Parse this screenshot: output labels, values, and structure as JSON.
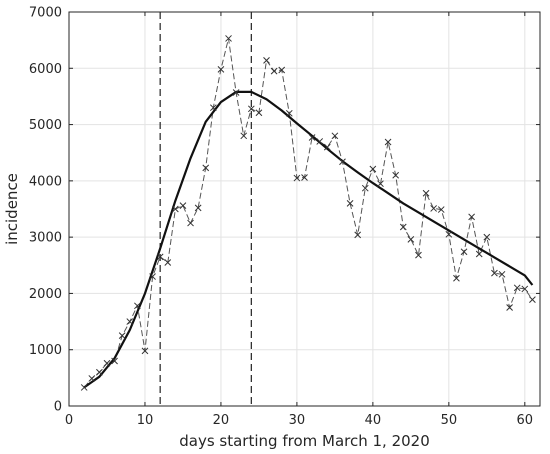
{
  "chart_data": {
    "type": "line",
    "title": "",
    "xlabel": "days starting from March 1, 2020",
    "ylabel": "incidence",
    "xlim": [
      0,
      62
    ],
    "ylim": [
      0,
      7000
    ],
    "xticks": [
      0,
      10,
      20,
      30,
      40,
      50,
      60
    ],
    "yticks": [
      0,
      1000,
      2000,
      3000,
      4000,
      5000,
      6000,
      7000
    ],
    "xtick_labels": [
      "0",
      "10",
      "20",
      "30",
      "40",
      "50",
      "60"
    ],
    "ytick_labels": [
      "0",
      "1000",
      "2000",
      "3000",
      "4000",
      "5000",
      "6000",
      "7000"
    ],
    "grid": true,
    "vertical_lines": [
      12,
      24
    ],
    "series": [
      {
        "style": "dashed line with x markers",
        "color": "#555555",
        "x": [
          2,
          3,
          4,
          5,
          6,
          7,
          8,
          9,
          10,
          11,
          12,
          13,
          14,
          15,
          16,
          17,
          18,
          19,
          20,
          21,
          22,
          23,
          24,
          25,
          26,
          27,
          28,
          29,
          30,
          31,
          32,
          33,
          34,
          35,
          36,
          37,
          38,
          39,
          40,
          41,
          42,
          43,
          44,
          45,
          46,
          47,
          48,
          49,
          50,
          51,
          52,
          53,
          54,
          55,
          56,
          57,
          58,
          59,
          60,
          61
        ],
        "y": [
          330,
          490,
          600,
          760,
          800,
          1250,
          1500,
          1780,
          980,
          2300,
          2650,
          2550,
          3500,
          3560,
          3250,
          3520,
          4230,
          5300,
          5980,
          6530,
          5570,
          4800,
          5280,
          5210,
          6140,
          5950,
          5970,
          5200,
          4050,
          4060,
          4770,
          4700,
          4600,
          4800,
          4340,
          3600,
          3040,
          3870,
          4210,
          3950,
          4690,
          4100,
          3180,
          2960,
          2680,
          3780,
          3510,
          3490,
          3050,
          2270,
          2740,
          3360,
          2700,
          3000,
          2360,
          2340,
          1750,
          2100,
          2080,
          1890
        ]
      },
      {
        "style": "solid line",
        "color": "#111111",
        "x": [
          2,
          4,
          6,
          8,
          10,
          12,
          14,
          16,
          18,
          20,
          22,
          24,
          26,
          28,
          30,
          32,
          34,
          36,
          38,
          40,
          42,
          44,
          46,
          48,
          50,
          52,
          54,
          56,
          58,
          60,
          61
        ],
        "y": [
          330,
          520,
          850,
          1350,
          2000,
          2800,
          3650,
          4400,
          5050,
          5400,
          5580,
          5580,
          5450,
          5250,
          5020,
          4800,
          4570,
          4350,
          4150,
          3960,
          3780,
          3600,
          3440,
          3280,
          3120,
          2960,
          2800,
          2640,
          2480,
          2320,
          2150
        ]
      }
    ]
  }
}
